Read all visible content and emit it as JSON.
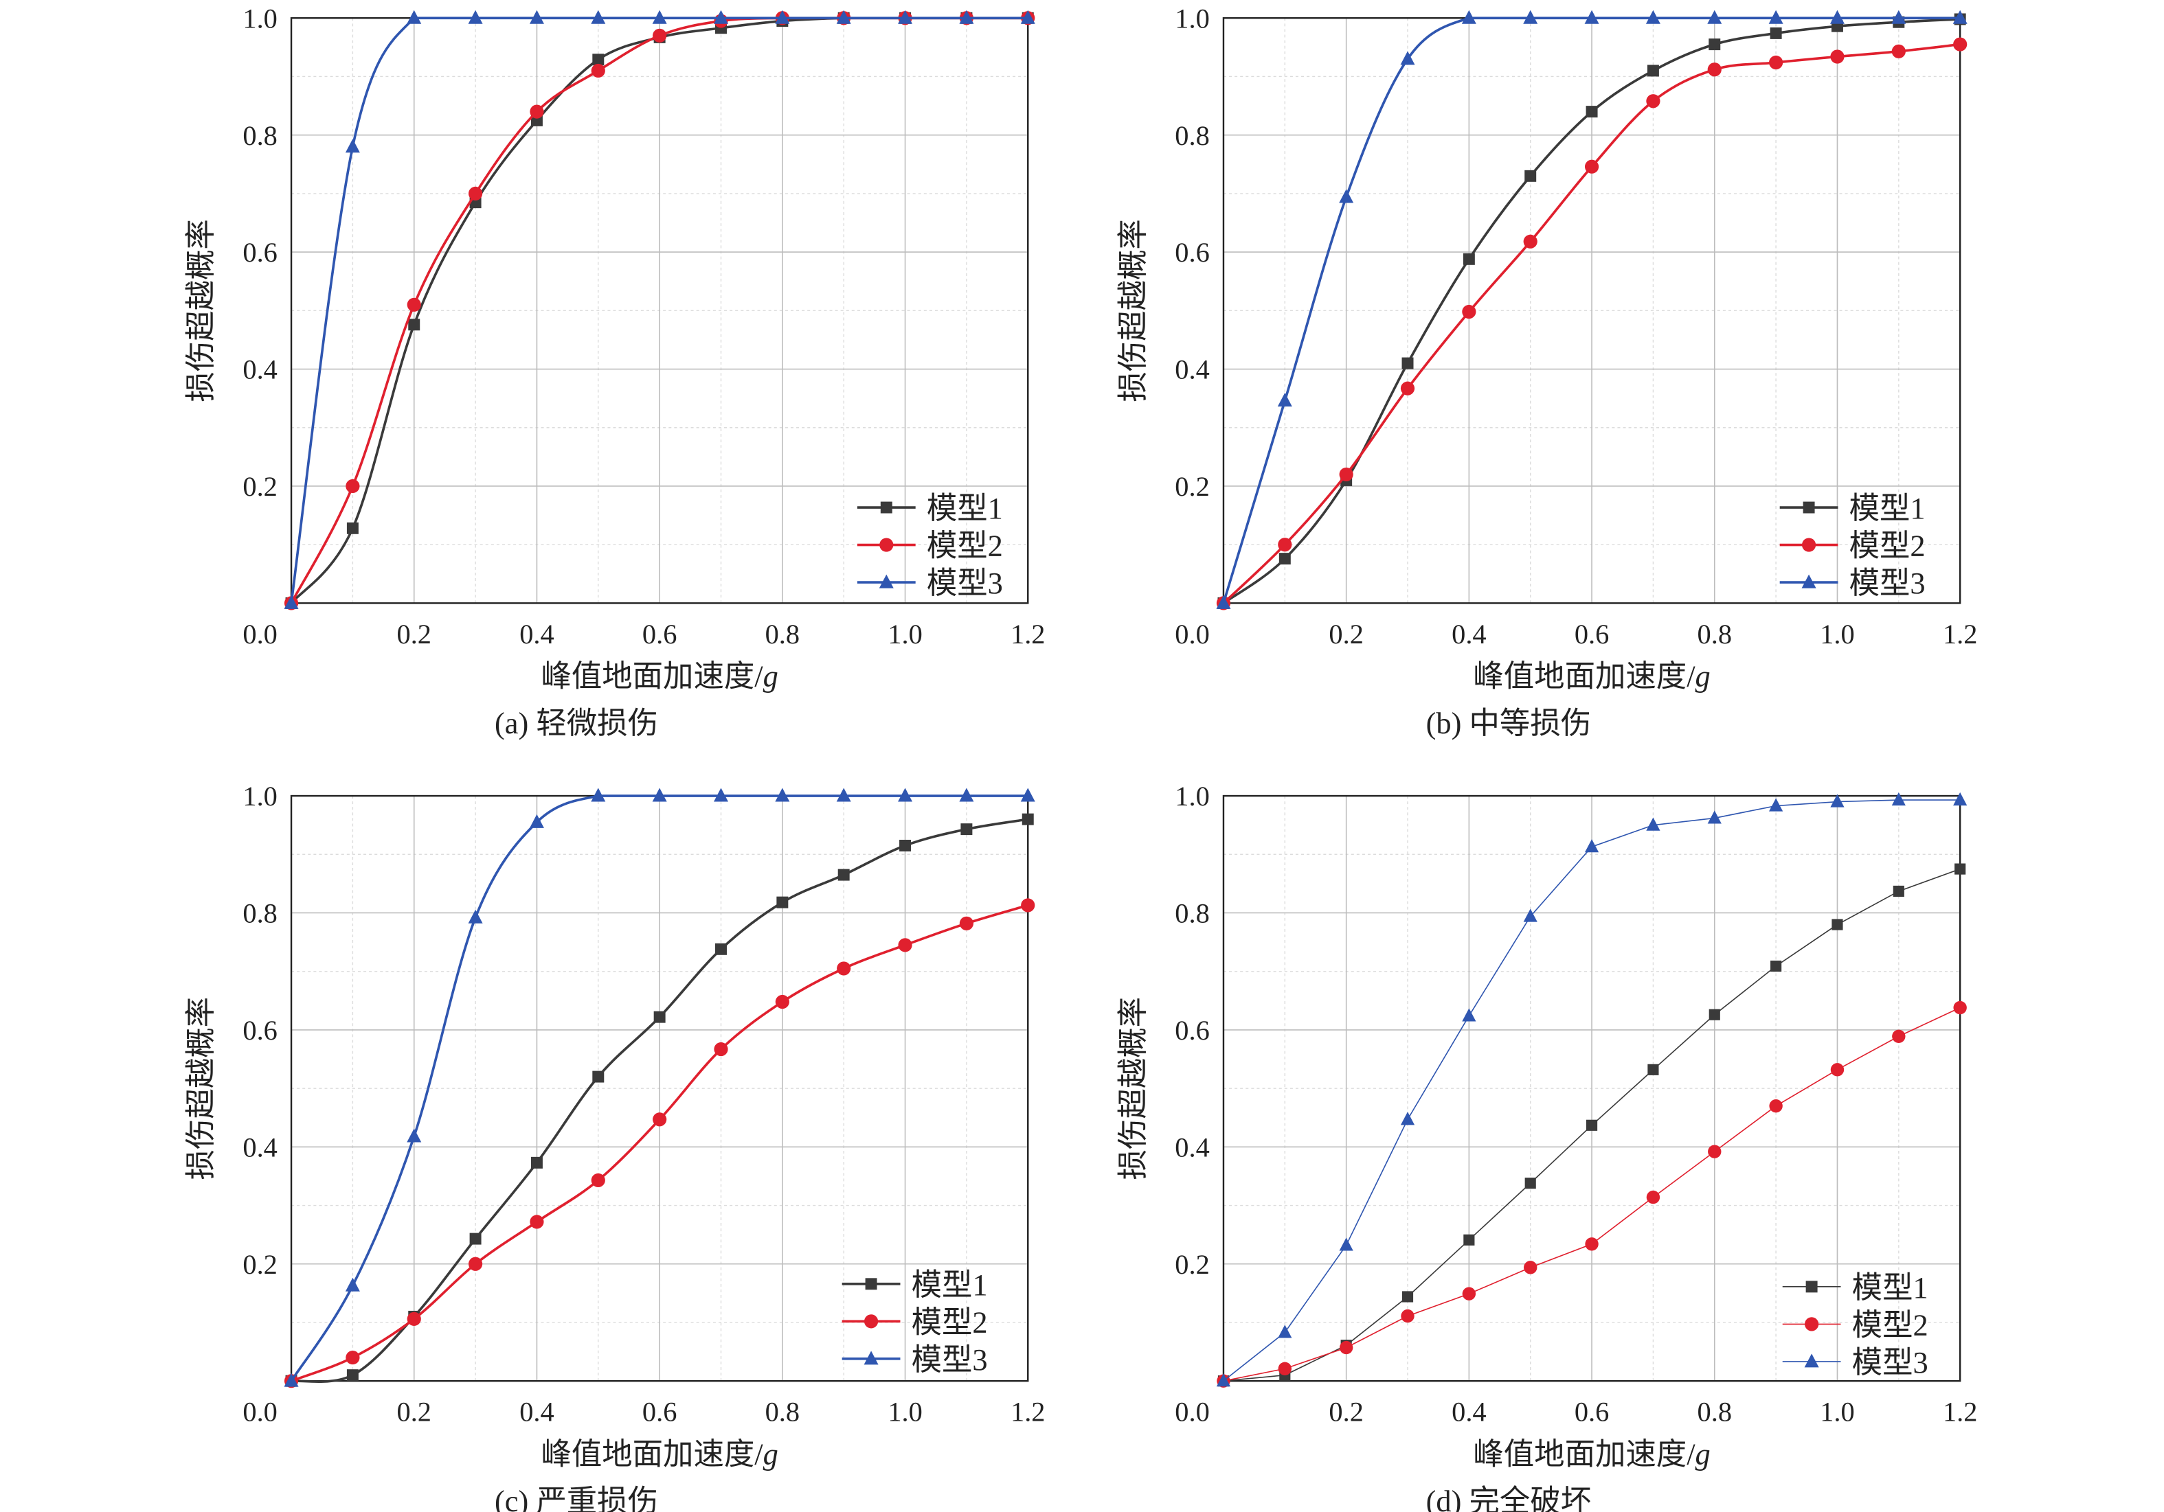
{
  "colors": {
    "model1": "#3a3a3a",
    "model2": "#e0202e",
    "model3": "#2f56b0",
    "grid": "#bdbdbd",
    "minor_grid": "#dcdcdc"
  },
  "chart_data": [
    {
      "type": "line",
      "caption": "(a) 轻微损伤",
      "xlabel": "峰值地面加速度/",
      "xlabel_italic": "g",
      "ylabel": "损伤超越概率",
      "xlim": [
        0,
        1.2
      ],
      "ylim": [
        0,
        1.0
      ],
      "xticks": [
        "0.2",
        "0.4",
        "0.6",
        "0.8",
        "1.0",
        "1.2"
      ],
      "yticks": [
        "0.2",
        "0.4",
        "0.6",
        "0.8",
        "1.0"
      ],
      "origin_label": "0.0",
      "grid": true,
      "legend": "bottom-right",
      "x": [
        0,
        0.1,
        0.2,
        0.3,
        0.4,
        0.5,
        0.6,
        0.7,
        0.8,
        0.9,
        1.0,
        1.1,
        1.2
      ],
      "series": [
        {
          "name": "模型1",
          "marker": "square",
          "values": [
            0,
            0.128,
            0.476,
            0.685,
            0.825,
            0.929,
            0.967,
            0.983,
            0.995,
            1.0,
            1.0,
            1.0,
            1.0
          ]
        },
        {
          "name": "模型2",
          "marker": "circle",
          "values": [
            0,
            0.2,
            0.51,
            0.7,
            0.84,
            0.91,
            0.97,
            0.995,
            1.0,
            1.0,
            1.0,
            1.0,
            1.0
          ]
        },
        {
          "name": "模型3",
          "marker": "triangle",
          "values": [
            0,
            0.78,
            1.0,
            1.0,
            1.0,
            1.0,
            1.0,
            1.0,
            1.0,
            1.0,
            1.0,
            1.0,
            1.0
          ]
        }
      ]
    },
    {
      "type": "line",
      "caption": "(b) 中等损伤",
      "xlabel": "峰值地面加速度/",
      "xlabel_italic": "g",
      "ylabel": "损伤超越概率",
      "xlim": [
        0,
        1.2
      ],
      "ylim": [
        0,
        1.0
      ],
      "xticks": [
        "0.2",
        "0.4",
        "0.6",
        "0.8",
        "1.0",
        "1.2"
      ],
      "yticks": [
        "0.2",
        "0.4",
        "0.6",
        "0.8",
        "1.0"
      ],
      "origin_label": "0.0",
      "grid": true,
      "legend": "bottom-right",
      "x": [
        0,
        0.1,
        0.2,
        0.3,
        0.4,
        0.5,
        0.6,
        0.7,
        0.8,
        0.9,
        1.0,
        1.1,
        1.2
      ],
      "series": [
        {
          "name": "模型1",
          "marker": "square",
          "values": [
            0,
            0.076,
            0.21,
            0.41,
            0.588,
            0.73,
            0.84,
            0.91,
            0.955,
            0.974,
            0.986,
            0.993,
            0.998
          ]
        },
        {
          "name": "模型2",
          "marker": "circle",
          "values": [
            0,
            0.1,
            0.22,
            0.367,
            0.498,
            0.618,
            0.746,
            0.858,
            0.912,
            0.924,
            0.934,
            0.943,
            0.955
          ]
        },
        {
          "name": "模型3",
          "marker": "triangle",
          "values": [
            0,
            0.346,
            0.694,
            0.93,
            1.0,
            1.0,
            1.0,
            1.0,
            1.0,
            1.0,
            1.0,
            1.0,
            1.0
          ]
        }
      ]
    },
    {
      "type": "line",
      "caption": "(c) 严重损伤",
      "xlabel": "峰值地面加速度/",
      "xlabel_italic": "g",
      "ylabel": "损伤超越概率",
      "xlim": [
        0,
        1.2
      ],
      "ylim": [
        0,
        1.0
      ],
      "xticks": [
        "0.2",
        "0.4",
        "0.6",
        "0.8",
        "1.0",
        "1.2"
      ],
      "yticks": [
        "0.2",
        "0.4",
        "0.6",
        "0.8",
        "1.0"
      ],
      "origin_label": "0.0",
      "grid": true,
      "legend": "bottom-right",
      "x": [
        0,
        0.1,
        0.2,
        0.3,
        0.4,
        0.5,
        0.6,
        0.7,
        0.8,
        0.9,
        1.0,
        1.1,
        1.2
      ],
      "series": [
        {
          "name": "模型1",
          "marker": "square",
          "values": [
            0,
            0.01,
            0.11,
            0.243,
            0.373,
            0.52,
            0.622,
            0.738,
            0.818,
            0.865,
            0.915,
            0.943,
            0.96
          ]
        },
        {
          "name": "模型2",
          "marker": "circle",
          "values": [
            0,
            0.04,
            0.106,
            0.2,
            0.272,
            0.343,
            0.447,
            0.567,
            0.648,
            0.705,
            0.745,
            0.782,
            0.813
          ]
        },
        {
          "name": "模型3",
          "marker": "triangle",
          "values": [
            0,
            0.163,
            0.418,
            0.792,
            0.955,
            1.0,
            1.0,
            1.0,
            1.0,
            1.0,
            1.0,
            1.0,
            1.0
          ]
        }
      ]
    },
    {
      "type": "line",
      "caption": "(d) 完全破坏",
      "xlabel": "峰值地面加速度/",
      "xlabel_italic": "g",
      "ylabel": "损伤超越概率",
      "xlim": [
        0,
        1.2
      ],
      "ylim": [
        0,
        1.0
      ],
      "xticks": [
        "0.2",
        "0.4",
        "0.6",
        "0.8",
        "1.0",
        "1.2"
      ],
      "yticks": [
        "0.2",
        "0.4",
        "0.6",
        "0.8",
        "1.0"
      ],
      "origin_label": "0.0",
      "grid": true,
      "legend": "bottom-right",
      "x": [
        0,
        0.1,
        0.2,
        0.3,
        0.4,
        0.5,
        0.6,
        0.7,
        0.8,
        0.9,
        1.0,
        1.1,
        1.2
      ],
      "series": [
        {
          "name": "模型1",
          "marker": "square",
          "values": [
            0,
            0.01,
            0.061,
            0.144,
            0.241,
            0.338,
            0.437,
            0.532,
            0.626,
            0.709,
            0.78,
            0.837,
            0.875
          ]
        },
        {
          "name": "模型2",
          "marker": "circle",
          "values": [
            0,
            0.021,
            0.057,
            0.111,
            0.149,
            0.194,
            0.234,
            0.314,
            0.392,
            0.47,
            0.532,
            0.589,
            0.638
          ]
        },
        {
          "name": "模型3",
          "marker": "triangle",
          "values": [
            0,
            0.083,
            0.232,
            0.447,
            0.624,
            0.794,
            0.913,
            0.95,
            0.962,
            0.983,
            0.99,
            0.993,
            0.993
          ]
        }
      ]
    }
  ]
}
